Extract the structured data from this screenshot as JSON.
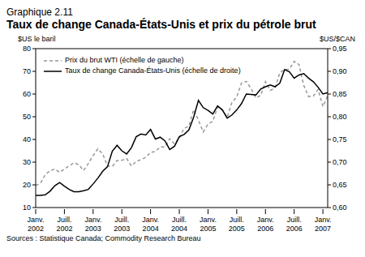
{
  "chart_data": {
    "type": "line",
    "subtitle": "Graphique 2.11",
    "title": "Taux de change Canada-États-Unis et prix du pétrole brut",
    "y_label": "$US le baril",
    "y2_label": "$US/$CAN",
    "annotations": [
      "Sources : Statistique Canada; Commodity Research Bureau"
    ],
    "legend": "upper left",
    "grid": false,
    "x": [
      "Janv. 2002",
      null,
      null,
      null,
      null,
      null,
      "Juill. 2002",
      null,
      null,
      null,
      null,
      null,
      "Janv. 2003",
      null,
      null,
      null,
      null,
      null,
      "Juill. 2003",
      null,
      null,
      null,
      null,
      null,
      "Janv. 2004",
      null,
      null,
      null,
      null,
      null,
      "Juill. 2004",
      null,
      null,
      null,
      null,
      null,
      "Janv. 2005",
      null,
      null,
      null,
      null,
      null,
      "Juill. 2005",
      null,
      null,
      null,
      null,
      null,
      "Janv. 2006",
      null,
      null,
      null,
      null,
      null,
      "Juill. 2006",
      null,
      null,
      null,
      null,
      null,
      "Janv. 2007",
      null
    ],
    "ylim": [
      10,
      80
    ],
    "yticks": [
      10,
      20,
      30,
      40,
      50,
      60,
      70,
      80
    ],
    "y2lim": [
      0.6,
      0.95
    ],
    "y2ticks": [
      {
        "value": 0.6,
        "label": "0,60"
      },
      {
        "value": 0.65,
        "label": "0,65"
      },
      {
        "value": 0.7,
        "label": "0,70"
      },
      {
        "value": 0.75,
        "label": "0,75"
      },
      {
        "value": 0.8,
        "label": "0,80"
      },
      {
        "value": 0.85,
        "label": "0,85"
      },
      {
        "value": 0.9,
        "label": "0,90"
      },
      {
        "value": 0.95,
        "label": "0,95"
      }
    ],
    "series": [
      {
        "name": "Prix du brut WTI (échelle de gauche)",
        "color": "#999999",
        "line_style": "dashed",
        "values": [
          19.7,
          20.7,
          24.5,
          26.2,
          27.0,
          25.5,
          26.9,
          28.4,
          29.7,
          28.9,
          26.3,
          29.4,
          32.9,
          35.9,
          33.6,
          28.3,
          28.1,
          30.7,
          30.8,
          31.6,
          28.3,
          30.3,
          31.1,
          32.1,
          34.3,
          34.7,
          36.7,
          36.7,
          40.3,
          38.0,
          40.7,
          44.9,
          45.9,
          53.1,
          48.5,
          43.3,
          46.8,
          48.0,
          54.3,
          53.0,
          49.8,
          56.3,
          58.7,
          64.9,
          65.6,
          62.4,
          58.3,
          59.4,
          65.5,
          61.6,
          62.7,
          69.4,
          70.8,
          70.9,
          74.4,
          73.0,
          63.8,
          58.9,
          59.1,
          62.0,
          54.5,
          59.3
        ]
      },
      {
        "name": "Taux de change Canada-États-Unis (échelle de droite)",
        "color": "#000000",
        "line_style": "solid",
        "axis": "y2",
        "values": [
          0.627,
          0.627,
          0.628,
          0.636,
          0.648,
          0.655,
          0.647,
          0.64,
          0.635,
          0.635,
          0.637,
          0.64,
          0.652,
          0.665,
          0.68,
          0.69,
          0.724,
          0.737,
          0.725,
          0.718,
          0.732,
          0.756,
          0.762,
          0.76,
          0.772,
          0.751,
          0.755,
          0.747,
          0.728,
          0.735,
          0.756,
          0.761,
          0.771,
          0.799,
          0.836,
          0.82,
          0.814,
          0.806,
          0.824,
          0.815,
          0.797,
          0.804,
          0.815,
          0.829,
          0.85,
          0.849,
          0.848,
          0.861,
          0.866,
          0.87,
          0.866,
          0.874,
          0.904,
          0.899,
          0.885,
          0.892,
          0.895,
          0.885,
          0.877,
          0.865,
          0.85,
          0.853
        ]
      }
    ]
  }
}
